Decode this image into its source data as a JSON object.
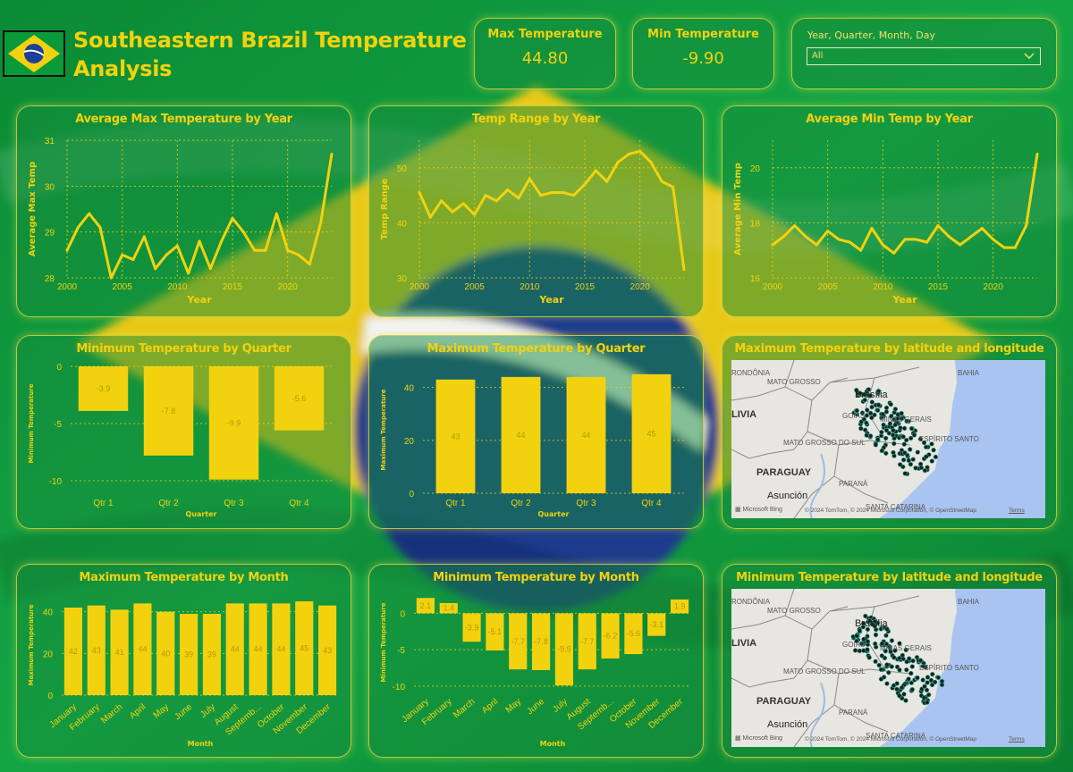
{
  "header": {
    "title": "Southeastern Brazil Temperature Analysis",
    "flag_colors": {
      "green": "#0a9a3a",
      "yellow": "#f2d20f",
      "blue": "#1f3f99"
    }
  },
  "kpis": {
    "max": {
      "label": "Max Temperature",
      "value": "44.80"
    },
    "min": {
      "label": "Min Temperature",
      "value": "-9.90"
    }
  },
  "slicer": {
    "label": "Year, Quarter, Month, Day",
    "value": "All"
  },
  "colors": {
    "accent": "#f2d20f",
    "bar": "#f2d20f",
    "label": "#b99600"
  },
  "charts": {
    "avg_max": {
      "title": "Average Max Temperature by Year",
      "xlabel": "Year",
      "ylabel": "Average Max Temp"
    },
    "range": {
      "title": "Temp Range by Year",
      "xlabel": "Year",
      "ylabel": "Temp Range"
    },
    "avg_min": {
      "title": "Average Min Temp by Year",
      "xlabel": "Year",
      "ylabel": "Average Min Temp"
    },
    "min_quarter": {
      "title": "Minimum Temperature by Quarter",
      "xlabel": "Quarter",
      "ylabel": "Minimum Temperature"
    },
    "max_quarter": {
      "title": "Maximum Temperature by Quarter",
      "xlabel": "Quarter",
      "ylabel": "Maximum Temperature"
    },
    "max_map": {
      "title": "Maximum Temperature by latitude and longitude"
    },
    "max_month": {
      "title": "Maximum Temperature by Month",
      "xlabel": "Month",
      "ylabel": "Maximum Temperature"
    },
    "min_month": {
      "title": "Minimum Temperature by Month",
      "xlabel": "Month",
      "ylabel": "Minimum Temperature"
    },
    "min_map": {
      "title": "Minimum Temperature by latitude and longitude"
    }
  },
  "map": {
    "labels": [
      "RONDÔNIA",
      "MATO GROSSO",
      "BAHIA",
      "Brasília",
      "GOIÁS",
      "MINAS GERAIS",
      "LIVIA",
      "MATO GROSSO DO SUL",
      "ESPÍRITO SANTO",
      "PARAGUAY",
      "PARANÁ",
      "Asunción",
      "SANTA CATARINA"
    ],
    "bing": "Microsoft Bing",
    "attribution": "© 2024 TomTom, © 2024 Microsoft Corporation, © OpenStreetMap",
    "terms": "Terms",
    "colors": {
      "land": "#e8e6e1",
      "ocean": "#a9c4f0",
      "border": "#8a8a8a",
      "river": "#9bbbe6",
      "dot": "#1e1e1e"
    }
  },
  "chart_data": [
    {
      "id": "avg_max",
      "type": "line",
      "title": "Average Max Temperature by Year",
      "xlabel": "Year",
      "ylabel": "Average Max Temp",
      "x": [
        2000,
        2001,
        2002,
        2003,
        2004,
        2005,
        2006,
        2007,
        2008,
        2009,
        2010,
        2011,
        2012,
        2013,
        2014,
        2015,
        2016,
        2017,
        2018,
        2019,
        2020,
        2021,
        2022,
        2023,
        2024
      ],
      "y": [
        28.6,
        29.1,
        29.4,
        29.1,
        28.0,
        28.5,
        28.4,
        28.9,
        28.2,
        28.5,
        28.7,
        28.1,
        28.8,
        28.2,
        28.8,
        29.3,
        29.0,
        28.6,
        28.6,
        29.4,
        28.6,
        28.5,
        28.3,
        29.2,
        30.7
      ],
      "xlim": [
        2000,
        2024
      ],
      "ylim": [
        28,
        31
      ],
      "xticks": [
        2000,
        2005,
        2010,
        2015,
        2020
      ],
      "yticks": [
        28,
        29,
        30,
        31
      ],
      "grid": true
    },
    {
      "id": "range",
      "type": "line",
      "title": "Temp Range by Year",
      "xlabel": "Year",
      "ylabel": "Temp Range",
      "x": [
        2000,
        2001,
        2002,
        2003,
        2004,
        2005,
        2006,
        2007,
        2008,
        2009,
        2010,
        2011,
        2012,
        2013,
        2014,
        2015,
        2016,
        2017,
        2018,
        2019,
        2020,
        2021,
        2022,
        2023,
        2024
      ],
      "y": [
        45.5,
        41.0,
        44.0,
        42.0,
        43.5,
        41.5,
        45.0,
        44.0,
        46.0,
        44.5,
        48.0,
        45.0,
        45.5,
        45.5,
        45.0,
        47.0,
        49.5,
        47.5,
        51.0,
        52.5,
        53.0,
        51.0,
        47.5,
        46.5,
        31.5
      ],
      "xlim": [
        2000,
        2024
      ],
      "ylim": [
        30,
        55
      ],
      "xticks": [
        2000,
        2005,
        2010,
        2015,
        2020
      ],
      "yticks": [
        30,
        40,
        50
      ],
      "grid": true
    },
    {
      "id": "avg_min",
      "type": "line",
      "title": "Average Min Temp by Year",
      "xlabel": "Year",
      "ylabel": "Average Min Temp",
      "x": [
        2000,
        2001,
        2002,
        2003,
        2004,
        2005,
        2006,
        2007,
        2008,
        2009,
        2010,
        2011,
        2012,
        2013,
        2014,
        2015,
        2016,
        2017,
        2018,
        2019,
        2020,
        2021,
        2022,
        2023,
        2024
      ],
      "y": [
        17.2,
        17.5,
        17.9,
        17.5,
        17.2,
        17.7,
        17.4,
        17.3,
        17.0,
        17.8,
        17.2,
        16.9,
        17.4,
        17.4,
        17.3,
        17.9,
        17.5,
        17.2,
        17.5,
        17.8,
        17.4,
        17.1,
        17.1,
        17.9,
        20.5
      ],
      "xlim": [
        2000,
        2024
      ],
      "ylim": [
        16,
        21
      ],
      "xticks": [
        2000,
        2005,
        2010,
        2015,
        2020
      ],
      "yticks": [
        16,
        18,
        20
      ],
      "grid": true
    },
    {
      "id": "min_quarter",
      "type": "bar",
      "title": "Minimum Temperature by Quarter",
      "xlabel": "Quarter",
      "ylabel": "Minimum Temperature",
      "categories": [
        "Qtr 1",
        "Qtr 2",
        "Qtr 3",
        "Qtr 4"
      ],
      "values": [
        -3.9,
        -7.8,
        -9.9,
        -5.6
      ],
      "ylim": [
        -10,
        0
      ],
      "yticks": [
        -10,
        -5,
        0
      ],
      "grid": true
    },
    {
      "id": "max_quarter",
      "type": "bar",
      "title": "Maximum Temperature by Quarter",
      "xlabel": "Quarter",
      "ylabel": "Maximum Temperature",
      "categories": [
        "Qtr 1",
        "Qtr 2",
        "Qtr 3",
        "Qtr 4"
      ],
      "values": [
        43,
        44,
        44,
        45
      ],
      "ylim": [
        0,
        48
      ],
      "yticks": [
        0,
        20,
        40
      ],
      "grid": true
    },
    {
      "id": "max_month",
      "type": "bar",
      "title": "Maximum Temperature by Month",
      "xlabel": "Month",
      "ylabel": "Maximum Temperature",
      "categories": [
        "January",
        "February",
        "March",
        "April",
        "May",
        "June",
        "July",
        "August",
        "Septemb...",
        "October",
        "November",
        "December"
      ],
      "values": [
        42,
        43,
        41,
        44,
        40,
        39,
        39,
        44,
        44,
        44,
        45,
        43
      ],
      "ylim": [
        0,
        48
      ],
      "yticks": [
        0,
        20,
        40
      ],
      "grid": true
    },
    {
      "id": "min_month",
      "type": "bar",
      "title": "Minimum Temperature by Month",
      "xlabel": "Month",
      "ylabel": "Minimum Temperature",
      "categories": [
        "January",
        "February",
        "March",
        "April",
        "May",
        "June",
        "July",
        "August",
        "Septemb...",
        "October",
        "November",
        "December"
      ],
      "values": [
        2.1,
        1.4,
        -3.9,
        -5.1,
        -7.7,
        -7.8,
        -9.9,
        -7.7,
        -6.2,
        -5.6,
        -3.1,
        1.9
      ],
      "ylim": [
        -10.5,
        2.5
      ],
      "yticks": [
        -10,
        -5,
        0
      ],
      "grid": true
    }
  ]
}
